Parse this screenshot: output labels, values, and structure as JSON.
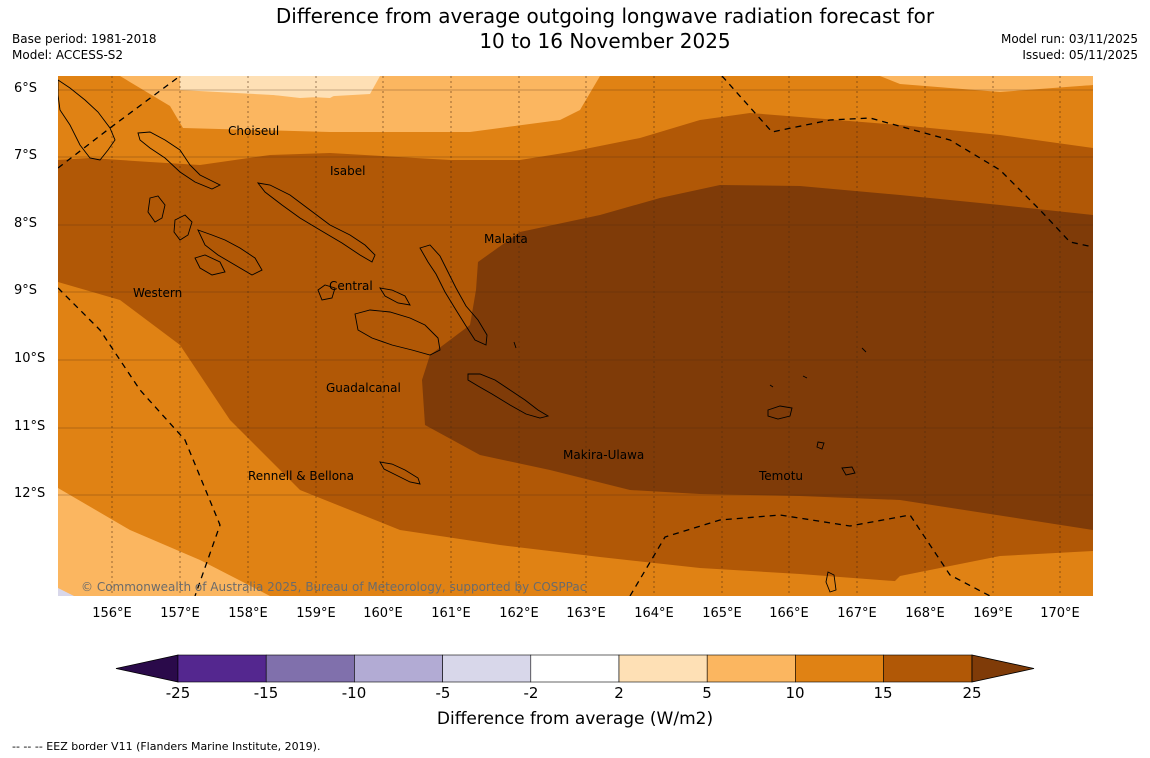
{
  "title_line1": "Difference from average outgoing longwave radiation forecast for",
  "title_line2": "10 to 16 November 2025",
  "base_period": "Base period: 1981-2018",
  "model": "Model: ACCESS-S2",
  "model_run": "Model run: 03/11/2025",
  "issued": "Issued: 05/11/2025",
  "lat_labels": [
    "6°S",
    "7°S",
    "8°S",
    "9°S",
    "10°S",
    "11°S",
    "12°S"
  ],
  "lon_labels": [
    "156°E",
    "157°E",
    "158°E",
    "159°E",
    "160°E",
    "161°E",
    "162°E",
    "163°E",
    "164°E",
    "165°E",
    "166°E",
    "167°E",
    "168°E",
    "169°E",
    "170°E"
  ],
  "regions": {
    "choiseul": "Choiseul",
    "isabel": "Isabel",
    "malaita": "Malaita",
    "western": "Western",
    "central": "Central",
    "guadalcanal": "Guadalcanal",
    "makira": "Makira-Ulawa",
    "rennell": "Rennell & Bellona",
    "temotu": "Temotu"
  },
  "copyright": "© Commonwealth of Australia 2025, Bureau of Meteorology, supported by COSPPac",
  "colorbar": {
    "label": "Difference from average (W/m2)",
    "ticks": [
      "-25",
      "-15",
      "-10",
      "-5",
      "-2",
      "2",
      "5",
      "10",
      "15",
      "25"
    ],
    "colors": [
      "#2a0a4a",
      "#54278f",
      "#8070ac",
      "#b2abd4",
      "#d8d7ea",
      "#ffffff",
      "#fee0b5",
      "#fbb660",
      "#e08214",
      "#b15806",
      "#7f3b08"
    ]
  },
  "legend_note": "--  --  -- EEZ border V11 (Flanders Marine Institute, 2019)."
}
